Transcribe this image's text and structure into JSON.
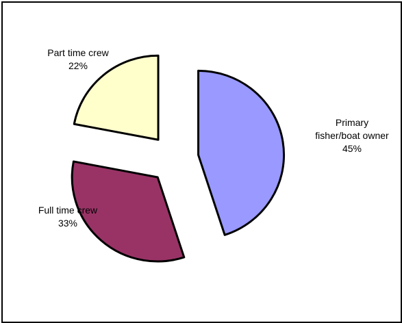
{
  "chart_data": {
    "type": "pie",
    "exploded": true,
    "start_angle_deg": 0,
    "direction": "clockwise",
    "slices": [
      {
        "label_lines": [
          "Primary",
          "fisher/boat owner"
        ],
        "value": 45,
        "value_label": "45%",
        "color": "#9999ff"
      },
      {
        "label_lines": [
          "Full time crew"
        ],
        "value": 33,
        "value_label": "33%",
        "color": "#993366"
      },
      {
        "label_lines": [
          "Part time crew"
        ],
        "value": 22,
        "value_label": "22%",
        "color": "#ffffcc"
      }
    ]
  }
}
